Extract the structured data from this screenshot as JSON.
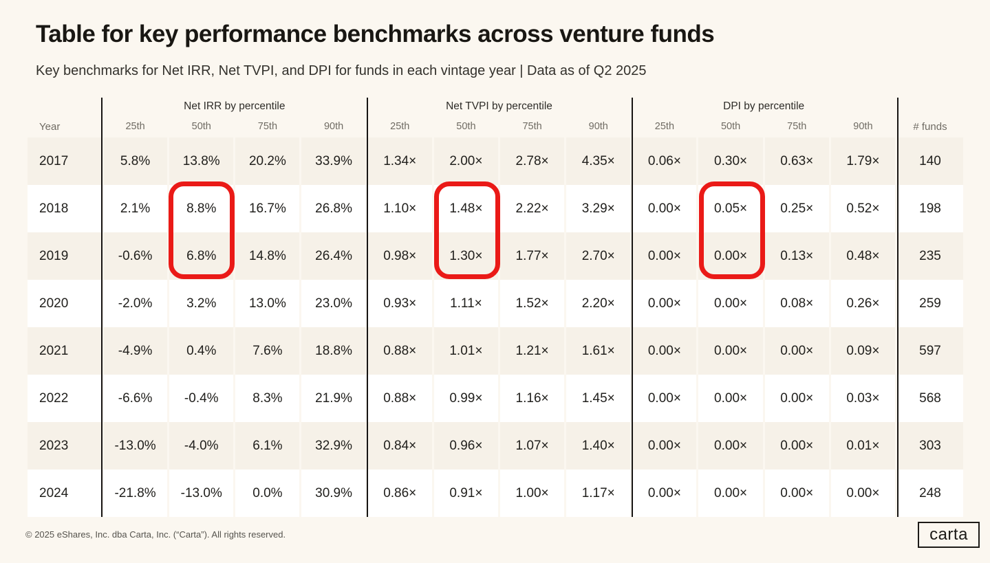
{
  "page": {
    "title": "Table for key performance benchmarks across venture funds",
    "subtitle": "Key benchmarks for Net IRR, Net TVPI, and DPI for funds in each vintage year | Data as of Q2 2025",
    "footer_copyright": "© 2025 eShares, Inc. dba Carta, Inc. (“Carta”). All rights reserved.",
    "brand_logo_text": "carta",
    "background_color": "#fbf7f0",
    "highlight_color": "#ea1a17"
  },
  "table": {
    "year_header": "Year",
    "funds_header": "# funds",
    "group_headers": [
      "Net IRR by percentile",
      "Net TVPI by percentile",
      "DPI by percentile"
    ],
    "percentile_headers": [
      "25th",
      "50th",
      "75th",
      "90th"
    ]
  },
  "chart_data": {
    "type": "table",
    "title": "Table for key performance benchmarks across venture funds",
    "subtitle": "Key benchmarks for Net IRR, Net TVPI, and DPI for funds in each vintage year",
    "as_of": "Q2 2025",
    "column_groups": [
      "Net IRR by percentile",
      "Net TVPI by percentile",
      "DPI by percentile"
    ],
    "percentiles": [
      "25th",
      "50th",
      "75th",
      "90th"
    ],
    "rows": [
      {
        "year": "2017",
        "net_irr": [
          "5.8%",
          "13.8%",
          "20.2%",
          "33.9%"
        ],
        "net_tvpi": [
          "1.34×",
          "2.00×",
          "2.78×",
          "4.35×"
        ],
        "dpi": [
          "0.06×",
          "0.30×",
          "0.63×",
          "1.79×"
        ],
        "num_funds": "140"
      },
      {
        "year": "2018",
        "net_irr": [
          "2.1%",
          "8.8%",
          "16.7%",
          "26.8%"
        ],
        "net_tvpi": [
          "1.10×",
          "1.48×",
          "2.22×",
          "3.29×"
        ],
        "dpi": [
          "0.00×",
          "0.05×",
          "0.25×",
          "0.52×"
        ],
        "num_funds": "198"
      },
      {
        "year": "2019",
        "net_irr": [
          "-0.6%",
          "6.8%",
          "14.8%",
          "26.4%"
        ],
        "net_tvpi": [
          "0.98×",
          "1.30×",
          "1.77×",
          "2.70×"
        ],
        "dpi": [
          "0.00×",
          "0.00×",
          "0.13×",
          "0.48×"
        ],
        "num_funds": "235"
      },
      {
        "year": "2020",
        "net_irr": [
          "-2.0%",
          "3.2%",
          "13.0%",
          "23.0%"
        ],
        "net_tvpi": [
          "0.93×",
          "1.11×",
          "1.52×",
          "2.20×"
        ],
        "dpi": [
          "0.00×",
          "0.00×",
          "0.08×",
          "0.26×"
        ],
        "num_funds": "259"
      },
      {
        "year": "2021",
        "net_irr": [
          "-4.9%",
          "0.4%",
          "7.6%",
          "18.8%"
        ],
        "net_tvpi": [
          "0.88×",
          "1.01×",
          "1.21×",
          "1.61×"
        ],
        "dpi": [
          "0.00×",
          "0.00×",
          "0.00×",
          "0.09×"
        ],
        "num_funds": "597"
      },
      {
        "year": "2022",
        "net_irr": [
          "-6.6%",
          "-0.4%",
          "8.3%",
          "21.9%"
        ],
        "net_tvpi": [
          "0.88×",
          "0.99×",
          "1.16×",
          "1.45×"
        ],
        "dpi": [
          "0.00×",
          "0.00×",
          "0.00×",
          "0.03×"
        ],
        "num_funds": "568"
      },
      {
        "year": "2023",
        "net_irr": [
          "-13.0%",
          "-4.0%",
          "6.1%",
          "32.9%"
        ],
        "net_tvpi": [
          "0.84×",
          "0.96×",
          "1.07×",
          "1.40×"
        ],
        "dpi": [
          "0.00×",
          "0.00×",
          "0.00×",
          "0.01×"
        ],
        "num_funds": "303"
      },
      {
        "year": "2024",
        "net_irr": [
          "-21.8%",
          "-13.0%",
          "0.0%",
          "30.9%"
        ],
        "net_tvpi": [
          "0.86×",
          "0.91×",
          "1.00×",
          "1.17×"
        ],
        "dpi": [
          "0.00×",
          "0.00×",
          "0.00×",
          "0.00×"
        ],
        "num_funds": "248"
      }
    ],
    "highlighted_cells": {
      "rows": [
        "2018",
        "2019"
      ],
      "columns": [
        "Net IRR 50th",
        "Net TVPI 50th",
        "DPI 50th"
      ]
    }
  }
}
